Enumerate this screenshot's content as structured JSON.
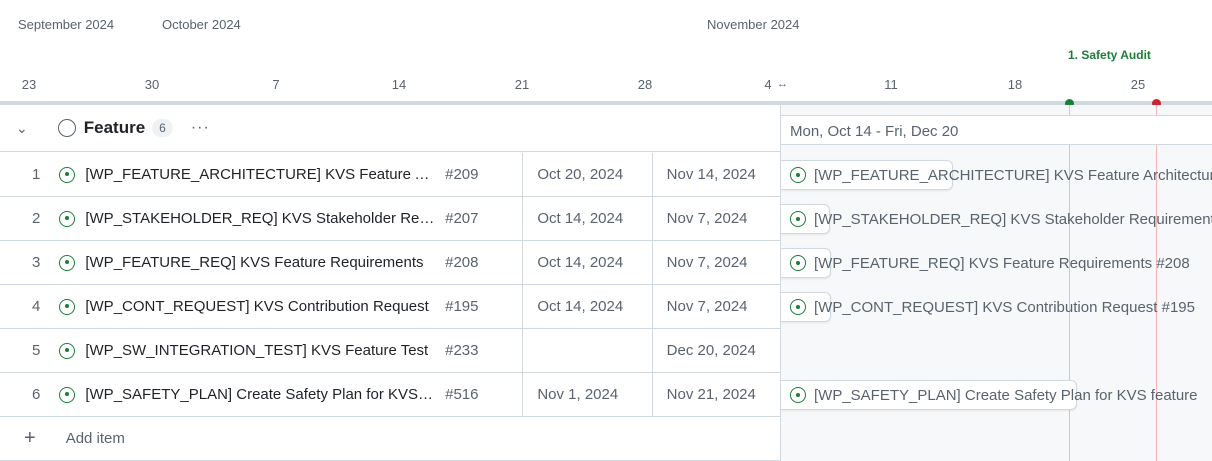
{
  "header": {
    "months": [
      "September 2024",
      "October 2024",
      "November 2024"
    ],
    "weeks": [
      "23",
      "30",
      "7",
      "14",
      "21",
      "28",
      "4",
      "11",
      "18",
      "25"
    ],
    "milestone": {
      "label": "1. Safety Audit",
      "color": "#1a7f37"
    },
    "today_color": "#cf222e"
  },
  "group": {
    "name": "Feature",
    "count": "6",
    "range": "Mon, Oct 14 - Fri, Dec 20"
  },
  "rows": [
    {
      "n": "1",
      "title": "[WP_FEATURE_ARCHITECTURE] KVS Feature Architecture",
      "issue": "#209",
      "start": "Oct 20, 2024",
      "end": "Nov 14, 2024",
      "bar": "[WP_FEATURE_ARCHITECTURE] KVS Feature Architecture"
    },
    {
      "n": "2",
      "title": "[WP_STAKEHOLDER_REQ] KVS Stakeholder Requirements",
      "issue": "#207",
      "start": "Oct 14, 2024",
      "end": "Nov 7, 2024",
      "bar": "[WP_STAKEHOLDER_REQ] KVS Stakeholder Requirements"
    },
    {
      "n": "3",
      "title": "[WP_FEATURE_REQ] KVS Feature Requirements",
      "issue": "#208",
      "start": "Oct 14, 2024",
      "end": "Nov 7, 2024",
      "bar": "[WP_FEATURE_REQ] KVS Feature Requirements #208"
    },
    {
      "n": "4",
      "title": "[WP_CONT_REQUEST] KVS Contribution Request",
      "issue": "#195",
      "start": "Oct 14, 2024",
      "end": "Nov 7, 2024",
      "bar": "[WP_CONT_REQUEST] KVS Contribution Request #195"
    },
    {
      "n": "5",
      "title": "[WP_SW_INTEGRATION_TEST] KVS Feature Test",
      "issue": "#233",
      "start": "",
      "end": "Dec 20, 2024",
      "bar": ""
    },
    {
      "n": "6",
      "title": "[WP_SAFETY_PLAN] Create Safety Plan for KVS feature",
      "issue": "#516",
      "start": "Nov 1, 2024",
      "end": "Nov 21, 2024",
      "bar": "[WP_SAFETY_PLAN] Create Safety Plan for KVS feature"
    }
  ],
  "add_item": "Add item"
}
